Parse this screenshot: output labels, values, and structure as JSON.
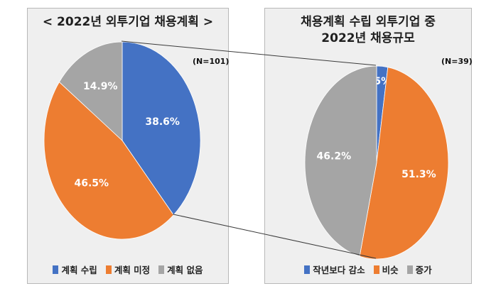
{
  "chart_data": [
    {
      "type": "pie",
      "title": "< 2022년 외투기업 채용계획 >",
      "note": "(N=101)",
      "categories": [
        "계획 수립",
        "계획 미정",
        "계획 없음"
      ],
      "values": [
        38.6,
        46.5,
        14.9
      ],
      "value_labels": [
        "38.6%",
        "46.5%",
        "14.9%"
      ],
      "colors": [
        "#4472c4",
        "#ed7d31",
        "#a5a5a5"
      ],
      "legend_position": "bottom"
    },
    {
      "type": "pie",
      "title_lines": [
        "채용계획 수립 외투기업 중",
        "2022년 채용규모"
      ],
      "note": "(N=39)",
      "categories": [
        "작년보다 감소",
        "비슷",
        "증가"
      ],
      "values": [
        2.5,
        51.3,
        46.2
      ],
      "value_labels": [
        "2.5%",
        "51.3%",
        "46.2%"
      ],
      "colors": [
        "#4472c4",
        "#ed7d31",
        "#a5a5a5"
      ],
      "legend_position": "bottom"
    }
  ]
}
